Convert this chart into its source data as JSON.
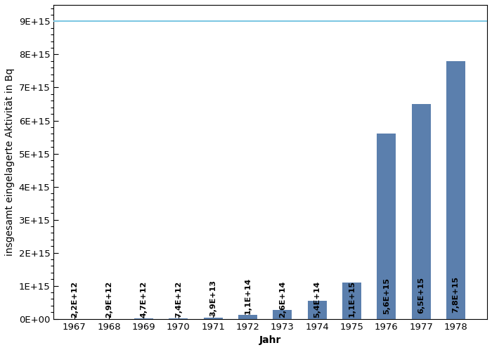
{
  "years": [
    1967,
    1968,
    1969,
    1970,
    1971,
    1972,
    1973,
    1974,
    1975,
    1976,
    1977,
    1978
  ],
  "values": [
    2200000000000.0,
    2900000000000.0,
    4700000000000.0,
    7400000000000.0,
    39000000000000.0,
    110000000000000.0,
    260000000000000.0,
    540000000000000.0,
    1100000000000000.0,
    5600000000000000.0,
    6500000000000000.0,
    7800000000000000.0
  ],
  "labels": [
    "2,2E+12",
    "2,9E+12",
    "4,7E+12",
    "7,4E+12",
    "3,9E+13",
    "1,1E+14",
    "2,6E+14",
    "5,4E+14",
    "1,1E+15",
    "5,6E+15",
    "6,5E+15",
    "7,8E+15"
  ],
  "bar_color": "#5b7fad",
  "hline_value": 9000000000000000.0,
  "hline_color": "#7ec8e3",
  "xlabel": "Jahr",
  "ylabel": "insgesamt eingelagerte Aktivität in Bq",
  "ylim": [
    0,
    9500000000000000.0
  ],
  "yticks": [
    0,
    1000000000000000.0,
    2000000000000000.0,
    3000000000000000.0,
    4000000000000000.0,
    5000000000000000.0,
    6000000000000000.0,
    7000000000000000.0,
    8000000000000000.0,
    9000000000000000.0
  ],
  "ytick_labels": [
    "0E+00",
    "1E+15",
    "2E+15",
    "3E+15",
    "4E+15",
    "5E+15",
    "6E+15",
    "7E+15",
    "8E+15",
    "9E+15"
  ],
  "bar_label_fontsize": 8.0,
  "axis_label_fontsize": 10,
  "tick_fontsize": 9.5,
  "bar_width": 0.55
}
